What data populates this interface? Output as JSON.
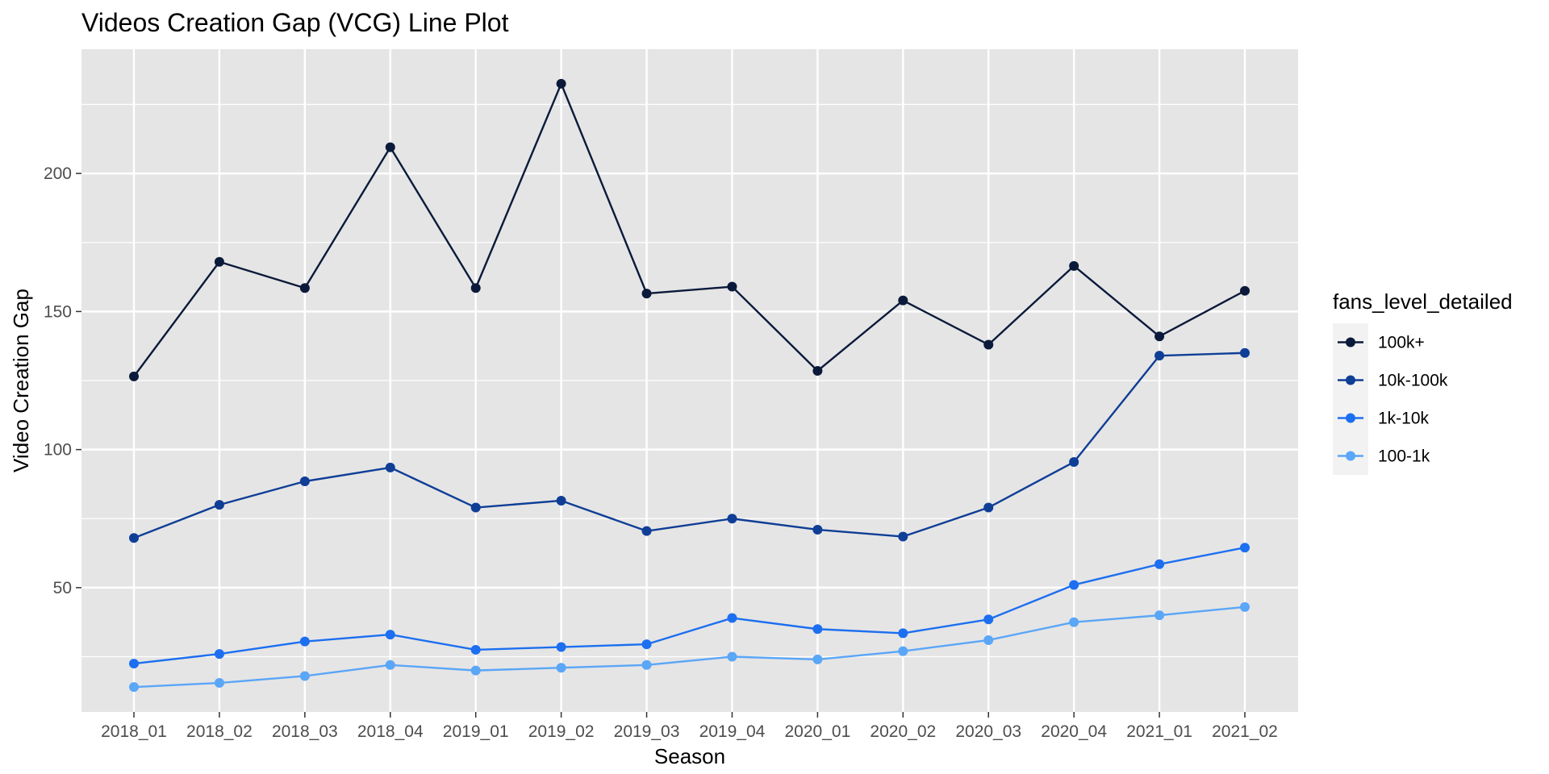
{
  "chart_data": {
    "type": "line",
    "title": "Videos Creation Gap (VCG) Line Plot",
    "xlabel": "Season",
    "ylabel": "Video Creation Gap",
    "categories": [
      "2018_01",
      "2018_02",
      "2018_03",
      "2018_04",
      "2019_01",
      "2019_02",
      "2019_03",
      "2019_04",
      "2020_01",
      "2020_02",
      "2020_03",
      "2020_04",
      "2021_01",
      "2021_02"
    ],
    "ylim": [
      5,
      245
    ],
    "yticks": [
      50,
      100,
      150,
      200
    ],
    "grid": true,
    "panel_background": "#e5e5e5",
    "legend": {
      "title": "fans_level_detailed",
      "placement": "right"
    },
    "series": [
      {
        "name": "100k+",
        "color": "#0b1a3a",
        "values": [
          126.5,
          168,
          158.5,
          209.5,
          158.5,
          232.5,
          156.5,
          159,
          128.5,
          154,
          138,
          166.5,
          141,
          157.5
        ]
      },
      {
        "name": "10k-100k",
        "color": "#0f3e96",
        "values": [
          68,
          80,
          88.5,
          93.5,
          79,
          81.5,
          70.5,
          75,
          71,
          68.5,
          79,
          95.5,
          134,
          135
        ]
      },
      {
        "name": "1k-10k",
        "color": "#1c6ff0",
        "values": [
          22.5,
          26,
          30.5,
          33,
          27.5,
          28.5,
          29.5,
          39,
          35,
          33.5,
          38.5,
          51,
          58.5,
          64.5
        ]
      },
      {
        "name": "100-1k",
        "color": "#5aa6f7",
        "values": [
          14,
          15.5,
          18,
          22,
          20,
          21,
          22,
          25,
          24,
          27,
          31,
          37.5,
          40,
          43
        ]
      }
    ]
  }
}
